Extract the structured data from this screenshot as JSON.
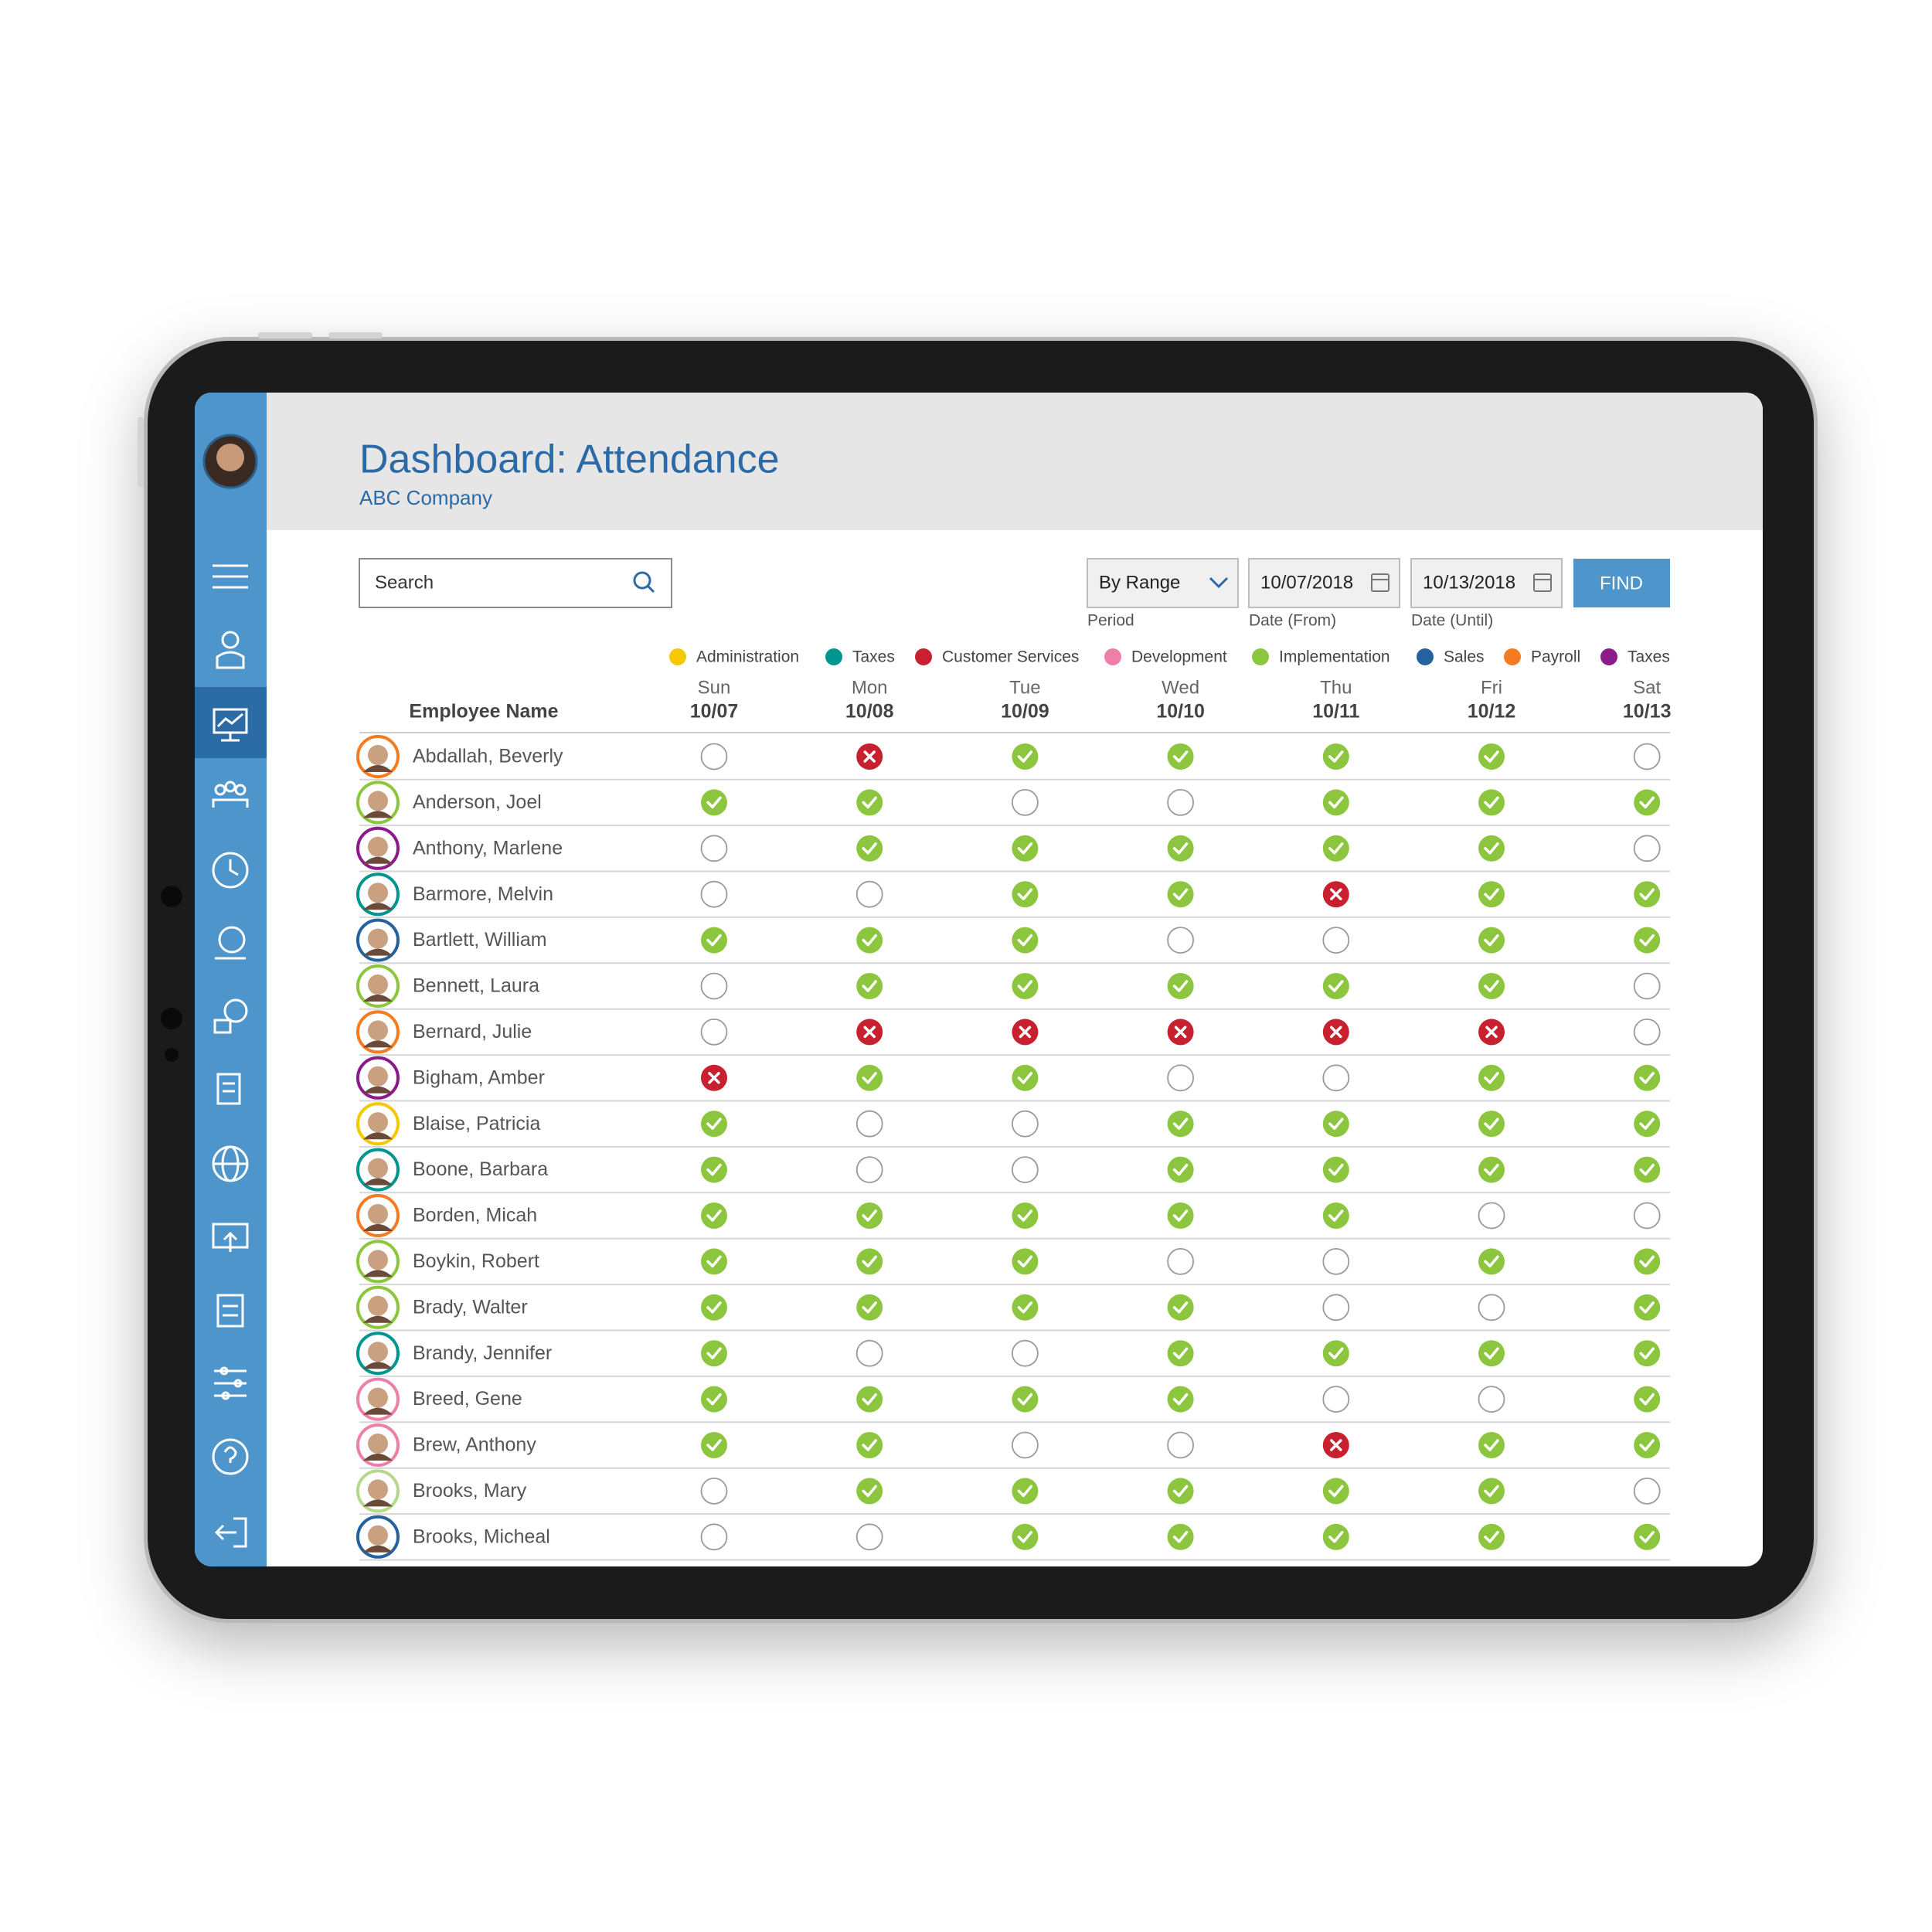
{
  "header": {
    "title": "Dashboard: Attendance",
    "subtitle": "ABC Company"
  },
  "toolbar": {
    "search_placeholder": "Search",
    "period": {
      "value": "By Range",
      "label": "Period"
    },
    "date_from": {
      "value": "10/07/2018",
      "label": "Date (From)"
    },
    "date_until": {
      "value": "10/13/2018",
      "label": "Date (Until)"
    },
    "find_button": "FIND"
  },
  "legend": [
    {
      "name": "Administration",
      "color": "#f5c800"
    },
    {
      "name": "Taxes",
      "color": "#00958f"
    },
    {
      "name": "Customer Services",
      "color": "#c8202f"
    },
    {
      "name": "Development",
      "color": "#ee7fa8"
    },
    {
      "name": "Implementation",
      "color": "#8cc63f"
    },
    {
      "name": "Sales",
      "color": "#25619e"
    },
    {
      "name": "Payroll",
      "color": "#f47b20"
    },
    {
      "name": "Taxes",
      "color": "#8b1a8b"
    }
  ],
  "table": {
    "header_name": "Employee Name",
    "days": [
      {
        "day": "Sun",
        "date": "10/07"
      },
      {
        "day": "Mon",
        "date": "10/08"
      },
      {
        "day": "Tue",
        "date": "10/09"
      },
      {
        "day": "Wed",
        "date": "10/10"
      },
      {
        "day": "Thu",
        "date": "10/11"
      },
      {
        "day": "Fri",
        "date": "10/12"
      },
      {
        "day": "Sat",
        "date": "10/13"
      }
    ],
    "rows": [
      {
        "name": "Abdallah, Beverly",
        "color": "#f47b20",
        "attendance": [
          "none",
          "absent",
          "present",
          "present",
          "present",
          "present",
          "none"
        ]
      },
      {
        "name": "Anderson, Joel",
        "color": "#8cc63f",
        "attendance": [
          "present",
          "present",
          "none",
          "none",
          "present",
          "present",
          "present"
        ]
      },
      {
        "name": "Anthony, Marlene",
        "color": "#8b1a8b",
        "attendance": [
          "none",
          "present",
          "present",
          "present",
          "present",
          "present",
          "none"
        ]
      },
      {
        "name": "Barmore, Melvin",
        "color": "#00958f",
        "attendance": [
          "none",
          "none",
          "present",
          "present",
          "absent",
          "present",
          "present"
        ]
      },
      {
        "name": "Bartlett, William",
        "color": "#25619e",
        "attendance": [
          "present",
          "present",
          "present",
          "none",
          "none",
          "present",
          "present"
        ]
      },
      {
        "name": "Bennett, Laura",
        "color": "#8cc63f",
        "attendance": [
          "none",
          "present",
          "present",
          "present",
          "present",
          "present",
          "none"
        ]
      },
      {
        "name": "Bernard, Julie",
        "color": "#f47b20",
        "attendance": [
          "none",
          "absent",
          "absent",
          "absent",
          "absent",
          "absent",
          "none"
        ]
      },
      {
        "name": "Bigham, Amber",
        "color": "#8b1a8b",
        "attendance": [
          "absent",
          "present",
          "present",
          "none",
          "none",
          "present",
          "present"
        ]
      },
      {
        "name": "Blaise, Patricia",
        "color": "#f5c800",
        "attendance": [
          "present",
          "none",
          "none",
          "present",
          "present",
          "present",
          "present"
        ]
      },
      {
        "name": "Boone, Barbara",
        "color": "#00958f",
        "attendance": [
          "present",
          "none",
          "none",
          "present",
          "present",
          "present",
          "present"
        ]
      },
      {
        "name": "Borden, Micah",
        "color": "#f47b20",
        "attendance": [
          "present",
          "present",
          "present",
          "present",
          "present",
          "none",
          "none"
        ]
      },
      {
        "name": "Boykin, Robert",
        "color": "#8cc63f",
        "attendance": [
          "present",
          "present",
          "present",
          "none",
          "none",
          "present",
          "present"
        ]
      },
      {
        "name": "Brady, Walter",
        "color": "#8cc63f",
        "attendance": [
          "present",
          "present",
          "present",
          "present",
          "none",
          "none",
          "present"
        ]
      },
      {
        "name": "Brandy, Jennifer",
        "color": "#00958f",
        "attendance": [
          "present",
          "none",
          "none",
          "present",
          "present",
          "present",
          "present"
        ]
      },
      {
        "name": "Breed, Gene",
        "color": "#ee7fa8",
        "attendance": [
          "present",
          "present",
          "present",
          "present",
          "none",
          "none",
          "present"
        ]
      },
      {
        "name": "Brew, Anthony",
        "color": "#ee7fa8",
        "attendance": [
          "present",
          "present",
          "none",
          "none",
          "absent",
          "present",
          "present"
        ]
      },
      {
        "name": "Brooks, Mary",
        "color": "#b5d88a",
        "attendance": [
          "none",
          "present",
          "present",
          "present",
          "present",
          "present",
          "none"
        ]
      },
      {
        "name": "Brooks, Micheal",
        "color": "#25619e",
        "attendance": [
          "none",
          "none",
          "present",
          "present",
          "present",
          "present",
          "present"
        ]
      }
    ]
  }
}
